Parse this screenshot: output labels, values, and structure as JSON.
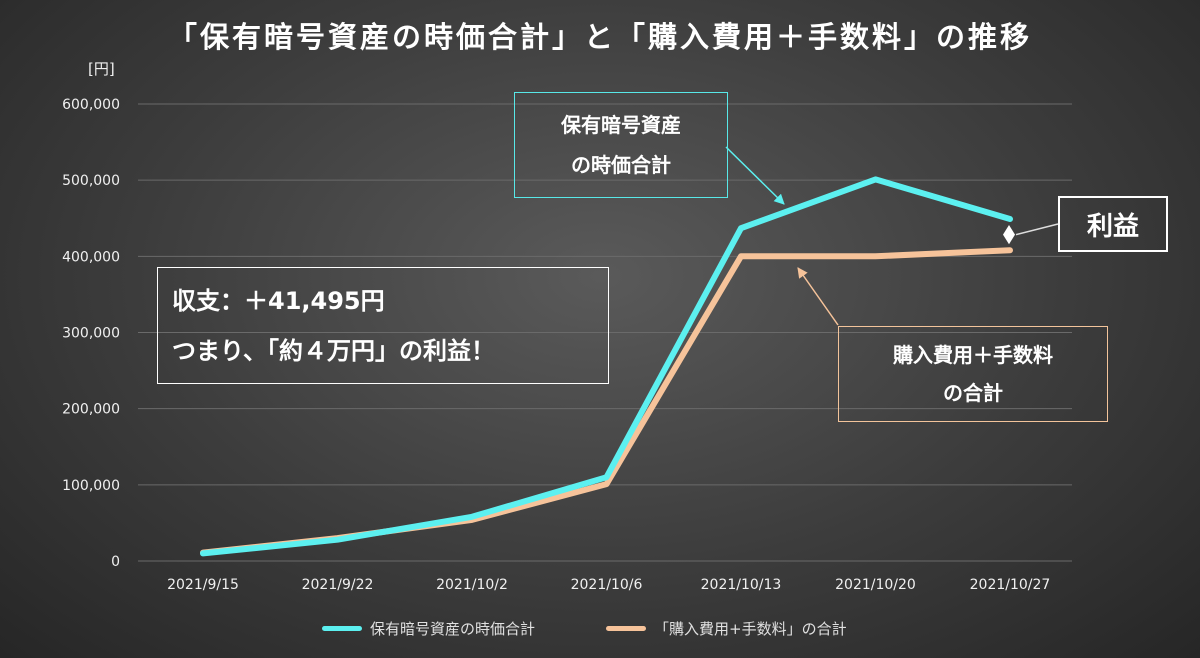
{
  "title": "「保有暗号資産の時価合計」と「購入費用＋手数料」の推移",
  "unit": "[円]",
  "colors": {
    "holdings": "#5cf0f0",
    "cost": "#f6c39a",
    "grid": "#6a6a6a",
    "axis_text": "#f0f0f0",
    "profit_marker": "#ffffff"
  },
  "chart_data": {
    "type": "line",
    "title": "「保有暗号資産の時価合計」と「購入費用＋手数料」の推移",
    "xlabel": "",
    "ylabel": "[円]",
    "categories": [
      "2021/9/15",
      "2021/9/22",
      "2021/10/2",
      "2021/10/6",
      "2021/10/13",
      "2021/10/20",
      "2021/10/27"
    ],
    "y_ticks": [
      0,
      100000,
      200000,
      300000,
      400000,
      500000,
      600000
    ],
    "y_tick_labels": [
      "0",
      "100,000",
      "200,000",
      "300,000",
      "400,000",
      "500,000",
      "600,000"
    ],
    "ylim": [
      0,
      600000
    ],
    "grid": true,
    "legend_position": "bottom",
    "series": [
      {
        "name": "保有暗号資産の時価合計",
        "values": [
          10000,
          28000,
          58000,
          110000,
          437000,
          501000,
          449000
        ]
      },
      {
        "name": "「購入費用+手数料」の合計",
        "values": [
          11000,
          30000,
          54000,
          101000,
          400000,
          400000,
          408000
        ]
      }
    ]
  },
  "annotations": {
    "holdings_callout": [
      "保有暗号資産",
      "の時価合計"
    ],
    "cost_callout": [
      "購入費用＋手数料",
      "の合計"
    ],
    "profit_label": "利益",
    "summary_line1": "収支：＋41,495円",
    "summary_line2": "つまり、「約４万円」の利益！"
  }
}
